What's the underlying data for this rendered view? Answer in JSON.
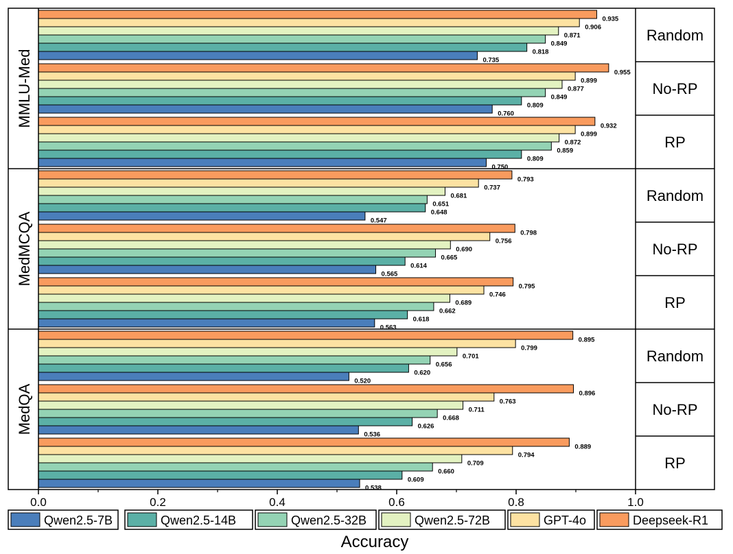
{
  "chart_data": {
    "type": "bar",
    "orientation": "horizontal",
    "xlabel": "Accuracy",
    "xlim": [
      0.0,
      1.0
    ],
    "xticks": [
      "0.0",
      "0.2",
      "0.4",
      "0.6",
      "0.8",
      "1.0"
    ],
    "series": [
      {
        "name": "Qwen2.5-7B",
        "color": "#4a7ebb"
      },
      {
        "name": "Qwen2.5-14B",
        "color": "#5bb0a6"
      },
      {
        "name": "Qwen2.5-32B",
        "color": "#94d3b4"
      },
      {
        "name": "Qwen2.5-72B",
        "color": "#e3f2c1"
      },
      {
        "name": "GPT-4o",
        "color": "#fde2a2"
      },
      {
        "name": "Deepseek-R1",
        "color": "#f99b5e"
      }
    ],
    "datasets": [
      {
        "name": "MMLU-Med",
        "settings": [
          {
            "name": "Random",
            "values": [
              "0.735",
              "0.818",
              "0.849",
              "0.871",
              "0.906",
              "0.935"
            ]
          },
          {
            "name": "No-RP",
            "values": [
              "0.760",
              "0.809",
              "0.849",
              "0.877",
              "0.899",
              "0.955"
            ]
          },
          {
            "name": "RP",
            "values": [
              "0.750",
              "0.809",
              "0.859",
              "0.872",
              "0.899",
              "0.932"
            ]
          }
        ]
      },
      {
        "name": "MedMCQA",
        "settings": [
          {
            "name": "Random",
            "values": [
              "0.547",
              "0.648",
              "0.651",
              "0.681",
              "0.737",
              "0.793"
            ]
          },
          {
            "name": "No-RP",
            "values": [
              "0.565",
              "0.614",
              "0.665",
              "0.690",
              "0.756",
              "0.798"
            ]
          },
          {
            "name": "RP",
            "values": [
              "0.563",
              "0.618",
              "0.662",
              "0.689",
              "0.746",
              "0.795"
            ]
          }
        ]
      },
      {
        "name": "MedQA",
        "settings": [
          {
            "name": "Random",
            "values": [
              "0.520",
              "0.620",
              "0.656",
              "0.701",
              "0.799",
              "0.895"
            ]
          },
          {
            "name": "No-RP",
            "values": [
              "0.536",
              "0.626",
              "0.668",
              "0.711",
              "0.763",
              "0.896"
            ]
          },
          {
            "name": "RP",
            "values": [
              "0.538",
              "0.609",
              "0.660",
              "0.709",
              "0.794",
              "0.889"
            ]
          }
        ]
      }
    ]
  }
}
